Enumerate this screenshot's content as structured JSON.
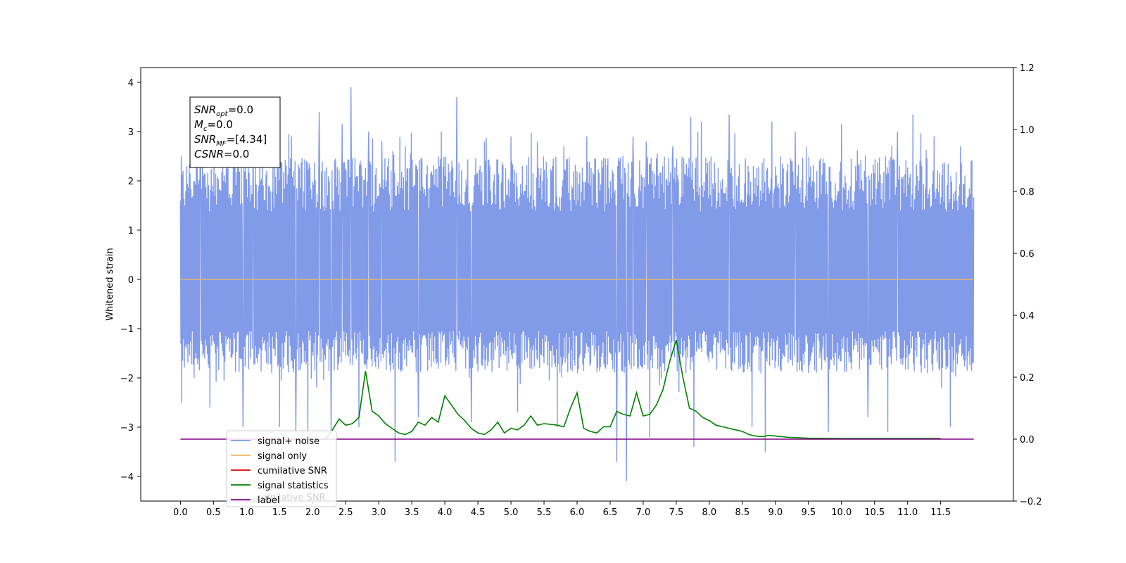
{
  "colors": {
    "signal_noise": "#7b96e8",
    "signal_only": "#f5b85c",
    "cumulative_snr": "#e00000",
    "signal_statistics": "#008000",
    "label": "#800080"
  },
  "info_box": {
    "lines": [
      {
        "var": "SNR",
        "sub": "opt",
        "value": "=0.0"
      },
      {
        "var": "M",
        "sub": "c",
        "value": "=0.0"
      },
      {
        "var": "SNR",
        "sub": "MF",
        "value": "=[4.34]"
      },
      {
        "var": "CSNR",
        "sub": "",
        "value": "=0.0"
      }
    ]
  },
  "legend": {
    "entries": [
      "signal+ noise",
      "signal only",
      "cumilative SNR",
      "signal statistics",
      "label"
    ],
    "overlap_text": "cumilative SNR"
  },
  "chart_data": {
    "type": "line",
    "title": "",
    "xlabel": "",
    "ylabel": "Whitened strain",
    "y2label": "",
    "xlim": [
      -0.6,
      12.6
    ],
    "ylim": [
      -4.5,
      4.3
    ],
    "y2lim": [
      -0.2,
      1.2
    ],
    "x_ticks": [
      "0.0",
      "0.5",
      "1.0",
      "1.5",
      "2.0",
      "2.5",
      "3.0",
      "3.5",
      "4.0",
      "4.5",
      "5.0",
      "5.5",
      "6.0",
      "6.5",
      "7.0",
      "7.5",
      "8.0",
      "8.5",
      "9.0",
      "9.5",
      "10.0",
      "10.5",
      "11.0",
      "11.5"
    ],
    "y_ticks": [
      "4",
      "3",
      "2",
      "1",
      "0",
      "−1",
      "−2",
      "−3",
      "−4"
    ],
    "y2_ticks": [
      "1.2",
      "1.0",
      "0.8",
      "0.6",
      "0.4",
      "0.2",
      "0.0",
      "−0.2"
    ],
    "grid": false,
    "legend_position": "lower-left",
    "series": [
      {
        "name": "signal+ noise",
        "axis": "left",
        "x_range": [
          0.0,
          12.0
        ],
        "band_low": -1.9,
        "band_high": 2.5,
        "spikes": [
          [
            0.0,
            1.6
          ],
          [
            0.02,
            -2.5
          ],
          [
            0.3,
            2.8
          ],
          [
            0.45,
            -2.6
          ],
          [
            0.8,
            2.9
          ],
          [
            0.95,
            -3.0
          ],
          [
            1.1,
            3.0
          ],
          [
            1.5,
            -3.0
          ],
          [
            1.68,
            2.9
          ],
          [
            1.75,
            -3.1
          ],
          [
            1.93,
            -3.4
          ],
          [
            2.1,
            3.4
          ],
          [
            2.28,
            -3.1
          ],
          [
            2.45,
            3.15
          ],
          [
            2.58,
            3.9
          ],
          [
            2.7,
            -3.0
          ],
          [
            2.85,
            3.0
          ],
          [
            3.05,
            2.8
          ],
          [
            3.25,
            -3.7
          ],
          [
            3.4,
            2.7
          ],
          [
            3.6,
            -2.8
          ],
          [
            3.95,
            3.0
          ],
          [
            4.18,
            3.7
          ],
          [
            4.4,
            -2.9
          ],
          [
            4.6,
            2.8
          ],
          [
            5.0,
            2.9
          ],
          [
            5.1,
            -2.7
          ],
          [
            5.4,
            2.8
          ],
          [
            5.7,
            -3.0
          ],
          [
            5.8,
            2.7
          ],
          [
            6.15,
            2.9
          ],
          [
            6.6,
            -3.7
          ],
          [
            6.75,
            -4.1
          ],
          [
            6.85,
            2.9
          ],
          [
            7.05,
            2.8
          ],
          [
            7.1,
            -3.2
          ],
          [
            7.45,
            2.7
          ],
          [
            7.72,
            3.3
          ],
          [
            7.77,
            -3.4
          ],
          [
            7.88,
            3.2
          ],
          [
            8.3,
            3.35
          ],
          [
            8.65,
            -3.0
          ],
          [
            8.85,
            -3.5
          ],
          [
            8.95,
            3.2
          ],
          [
            9.3,
            3.0
          ],
          [
            9.8,
            -3.1
          ],
          [
            10.0,
            3.15
          ],
          [
            10.4,
            -2.8
          ],
          [
            10.7,
            -3.1
          ],
          [
            10.85,
            3.0
          ],
          [
            11.08,
            3.35
          ],
          [
            11.4,
            2.9
          ],
          [
            11.65,
            -3.0
          ],
          [
            11.8,
            2.7
          ]
        ]
      },
      {
        "name": "signal only",
        "axis": "left",
        "x": [
          0.0,
          12.0
        ],
        "y": [
          0.0,
          0.0
        ]
      },
      {
        "name": "cumilative SNR",
        "axis": "right",
        "x": [],
        "y": []
      },
      {
        "name": "signal statistics",
        "axis": "right",
        "x": [
          2.2,
          2.3,
          2.4,
          2.5,
          2.6,
          2.7,
          2.8,
          2.9,
          3.0,
          3.1,
          3.2,
          3.3,
          3.4,
          3.5,
          3.6,
          3.7,
          3.8,
          3.9,
          4.0,
          4.1,
          4.2,
          4.3,
          4.4,
          4.5,
          4.6,
          4.7,
          4.8,
          4.9,
          5.0,
          5.1,
          5.2,
          5.3,
          5.4,
          5.5,
          5.6,
          5.7,
          5.8,
          5.9,
          6.0,
          6.1,
          6.2,
          6.3,
          6.4,
          6.5,
          6.6,
          6.7,
          6.8,
          6.9,
          7.0,
          7.1,
          7.2,
          7.3,
          7.4,
          7.5,
          7.6,
          7.7,
          7.8,
          7.9,
          8.0,
          8.1,
          8.2,
          8.3,
          8.4,
          8.5,
          8.6,
          8.7,
          8.8,
          8.9,
          9.0,
          9.1,
          9.2,
          9.3,
          9.5,
          10.0,
          10.5,
          11.0,
          11.5
        ],
        "y": [
          0.0,
          0.03,
          0.065,
          0.045,
          0.05,
          0.07,
          0.22,
          0.09,
          0.075,
          0.05,
          0.035,
          0.02,
          0.015,
          0.025,
          0.055,
          0.045,
          0.07,
          0.055,
          0.14,
          0.11,
          0.08,
          0.06,
          0.035,
          0.02,
          0.015,
          0.03,
          0.055,
          0.02,
          0.035,
          0.03,
          0.045,
          0.075,
          0.045,
          0.05,
          0.048,
          0.045,
          0.04,
          0.1,
          0.15,
          0.035,
          0.025,
          0.02,
          0.04,
          0.04,
          0.09,
          0.08,
          0.075,
          0.15,
          0.075,
          0.08,
          0.11,
          0.16,
          0.25,
          0.32,
          0.2,
          0.1,
          0.09,
          0.07,
          0.06,
          0.045,
          0.04,
          0.035,
          0.03,
          0.025,
          0.015,
          0.01,
          0.008,
          0.012,
          0.01,
          0.008,
          0.006,
          0.005,
          0.003,
          0.002,
          0.002,
          0.002,
          0.002
        ]
      },
      {
        "name": "label",
        "axis": "right",
        "x": [
          0.0,
          12.0
        ],
        "y": [
          0.0,
          0.0
        ]
      }
    ]
  }
}
